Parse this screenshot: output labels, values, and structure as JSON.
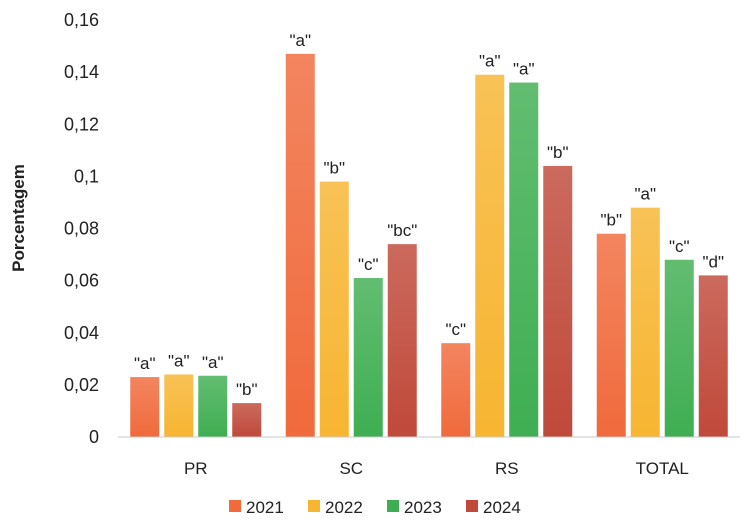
{
  "chart_data": {
    "type": "bar",
    "title": "",
    "xlabel": "",
    "ylabel": "Porcentagem",
    "categories": [
      "PR",
      "SC",
      "RS",
      "TOTAL"
    ],
    "yticks": [
      "0",
      "0,02",
      "0,04",
      "0,06",
      "0,08",
      "0,1",
      "0,12",
      "0,14",
      "0,16"
    ],
    "ylim": [
      0,
      0.16
    ],
    "grid": false,
    "legend_position": "bottom",
    "series": [
      {
        "name": "2021",
        "color": "#f06a3c",
        "values": [
          0.023,
          0.147,
          0.036,
          0.078
        ],
        "labels": [
          "\"a\"",
          "\"a\"",
          "\"c\"",
          "\"b\""
        ]
      },
      {
        "name": "2022",
        "color": "#f7b531",
        "values": [
          0.024,
          0.098,
          0.139,
          0.088
        ],
        "labels": [
          "\"a\"",
          "\"b\"",
          "\"a\"",
          "\"a\""
        ]
      },
      {
        "name": "2023",
        "color": "#3fae52",
        "values": [
          0.0235,
          0.061,
          0.136,
          0.068
        ],
        "labels": [
          "\"a\"",
          "\"c\"",
          "\"a\"",
          "\"c\""
        ]
      },
      {
        "name": "2024",
        "color": "#c0493a",
        "values": [
          0.013,
          0.074,
          0.104,
          0.062
        ],
        "labels": [
          "\"b\"",
          "\"bc\"",
          "\"b\"",
          "\"d\""
        ]
      }
    ]
  }
}
